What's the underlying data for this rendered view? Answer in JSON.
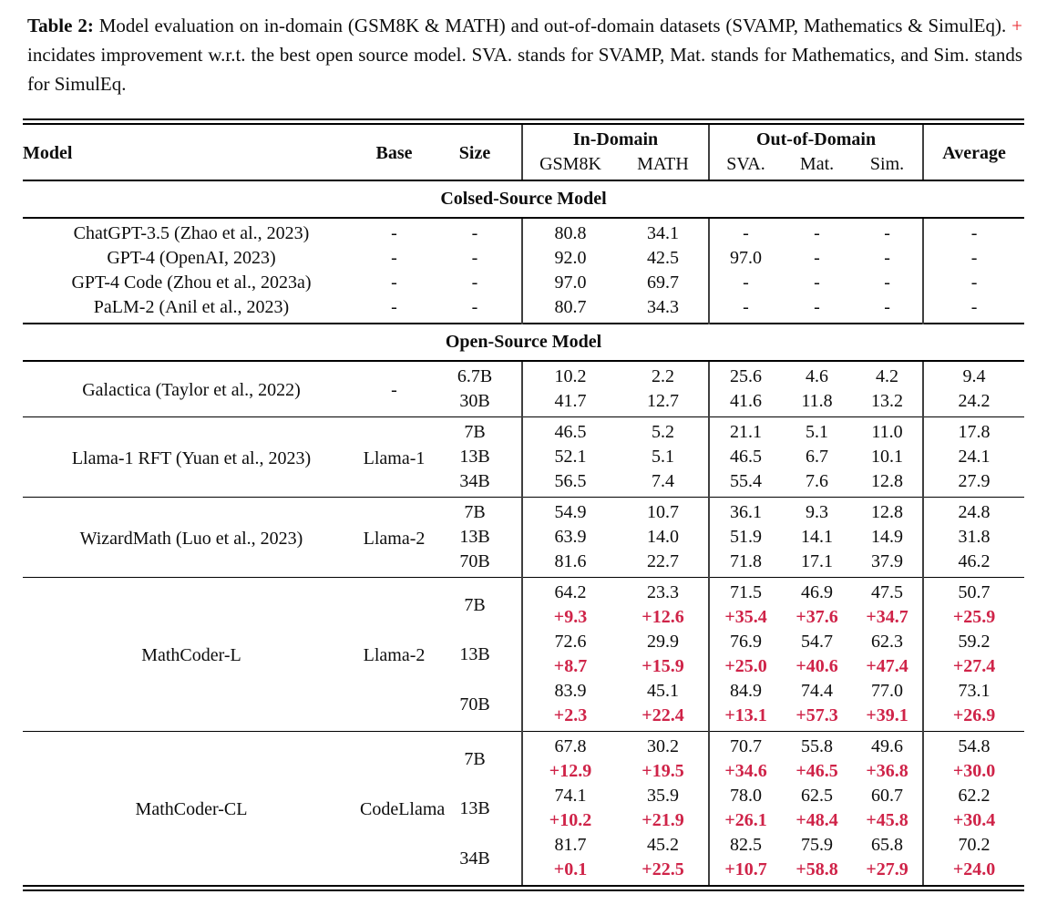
{
  "caption": {
    "label": "Table 2:",
    "text_before": "Model evaluation on in-domain (GSM8K & MATH) and out-of-domain datasets (SVAMP, Mathematics & SimulEq).",
    "plus": "+",
    "text_after": "incidates improvement w.r.t. the best open source model. SVA. stands for SVAMP, Mat. stands for Mathematics, and Sim. stands for SimulEq."
  },
  "colors": {
    "delta_red": "#cf2348",
    "caption_plus_red": "#e8262d",
    "text": "#0d0d0d",
    "vertical_rule": "#3f3f3f"
  },
  "table": {
    "header": {
      "model": "Model",
      "base": "Base",
      "size": "Size",
      "in_domain": "In-Domain",
      "out_of_domain": "Out-of-Domain",
      "average": "Average",
      "sub": [
        "GSM8K",
        "MATH",
        "SVA.",
        "Mat.",
        "Sim."
      ]
    },
    "sections": [
      {
        "title": "Colsed-Source Model",
        "groups": [
          {
            "model": null,
            "base": null,
            "rows": [
              {
                "model": "ChatGPT-3.5 (Zhao et al., 2023)",
                "base": "-",
                "size": "-",
                "values": [
                  "80.8",
                  "34.1",
                  "-",
                  "-",
                  "-",
                  "-"
                ]
              },
              {
                "model": "GPT-4 (OpenAI, 2023)",
                "base": "-",
                "size": "-",
                "values": [
                  "92.0",
                  "42.5",
                  "97.0",
                  "-",
                  "-",
                  "-"
                ]
              },
              {
                "model": "GPT-4 Code (Zhou et al., 2023a)",
                "base": "-",
                "size": "-",
                "values": [
                  "97.0",
                  "69.7",
                  "-",
                  "-",
                  "-",
                  "-"
                ]
              },
              {
                "model": "PaLM-2 (Anil et al., 2023)",
                "base": "-",
                "size": "-",
                "values": [
                  "80.7",
                  "34.3",
                  "-",
                  "-",
                  "-",
                  "-"
                ]
              }
            ]
          }
        ]
      },
      {
        "title": "Open-Source Model",
        "groups": [
          {
            "model": "Galactica (Taylor et al., 2022)",
            "base": "-",
            "rows": [
              {
                "size": "6.7B",
                "values": [
                  "10.2",
                  "2.2",
                  "25.6",
                  "4.6",
                  "4.2",
                  "9.4"
                ]
              },
              {
                "size": "30B",
                "values": [
                  "41.7",
                  "12.7",
                  "41.6",
                  "11.8",
                  "13.2",
                  "24.2"
                ]
              }
            ]
          },
          {
            "model": "Llama-1 RFT (Yuan et al., 2023)",
            "base": "Llama-1",
            "rows": [
              {
                "size": "7B",
                "values": [
                  "46.5",
                  "5.2",
                  "21.1",
                  "5.1",
                  "11.0",
                  "17.8"
                ]
              },
              {
                "size": "13B",
                "values": [
                  "52.1",
                  "5.1",
                  "46.5",
                  "6.7",
                  "10.1",
                  "24.1"
                ]
              },
              {
                "size": "34B",
                "values": [
                  "56.5",
                  "7.4",
                  "55.4",
                  "7.6",
                  "12.8",
                  "27.9"
                ]
              }
            ]
          },
          {
            "model": "WizardMath (Luo et al., 2023)",
            "base": "Llama-2",
            "rows": [
              {
                "size": "7B",
                "values": [
                  "54.9",
                  "10.7",
                  "36.1",
                  "9.3",
                  "12.8",
                  "24.8"
                ]
              },
              {
                "size": "13B",
                "values": [
                  "63.9",
                  "14.0",
                  "51.9",
                  "14.1",
                  "14.9",
                  "31.8"
                ]
              },
              {
                "size": "70B",
                "values": [
                  "81.6",
                  "22.7",
                  "71.8",
                  "17.1",
                  "37.9",
                  "46.2"
                ]
              }
            ]
          },
          {
            "model": "MathCoder-L",
            "base": "Llama-2",
            "rows": [
              {
                "size": "7B",
                "values": [
                  "64.2",
                  "23.3",
                  "71.5",
                  "46.9",
                  "47.5",
                  "50.7"
                ],
                "delta": [
                  "+9.3",
                  "+12.6",
                  "+35.4",
                  "+37.6",
                  "+34.7",
                  "+25.9"
                ]
              },
              {
                "size": "13B",
                "values": [
                  "72.6",
                  "29.9",
                  "76.9",
                  "54.7",
                  "62.3",
                  "59.2"
                ],
                "delta": [
                  "+8.7",
                  "+15.9",
                  "+25.0",
                  "+40.6",
                  "+47.4",
                  "+27.4"
                ]
              },
              {
                "size": "70B",
                "values": [
                  "83.9",
                  "45.1",
                  "84.9",
                  "74.4",
                  "77.0",
                  "73.1"
                ],
                "delta": [
                  "+2.3",
                  "+22.4",
                  "+13.1",
                  "+57.3",
                  "+39.1",
                  "+26.9"
                ]
              }
            ]
          },
          {
            "model": "MathCoder-CL",
            "base": "CodeLlama",
            "rows": [
              {
                "size": "7B",
                "values": [
                  "67.8",
                  "30.2",
                  "70.7",
                  "55.8",
                  "49.6",
                  "54.8"
                ],
                "delta": [
                  "+12.9",
                  "+19.5",
                  "+34.6",
                  "+46.5",
                  "+36.8",
                  "+30.0"
                ]
              },
              {
                "size": "13B",
                "values": [
                  "74.1",
                  "35.9",
                  "78.0",
                  "62.5",
                  "60.7",
                  "62.2"
                ],
                "delta": [
                  "+10.2",
                  "+21.9",
                  "+26.1",
                  "+48.4",
                  "+45.8",
                  "+30.4"
                ]
              },
              {
                "size": "34B",
                "values": [
                  "81.7",
                  "45.2",
                  "82.5",
                  "75.9",
                  "65.8",
                  "70.2"
                ],
                "delta": [
                  "+0.1",
                  "+22.5",
                  "+10.7",
                  "+58.8",
                  "+27.9",
                  "+24.0"
                ]
              }
            ]
          }
        ]
      }
    ]
  }
}
